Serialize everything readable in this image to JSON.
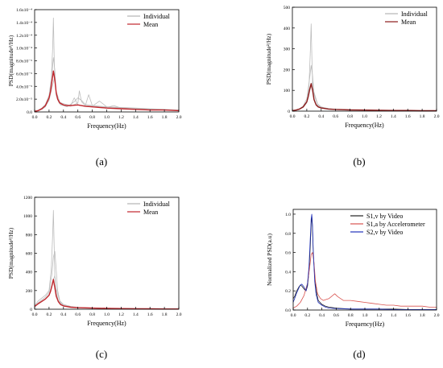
{
  "chart_data": [
    {
      "type": "line",
      "panel_label": "(a)",
      "xlabel": "Frequency(Hz)",
      "ylabel": "PSD(magnitude²/Hz)",
      "xlim": [
        0,
        2.0
      ],
      "ylim": [
        0,
        0.00016
      ],
      "xticks": [
        "0.0",
        "0.2",
        "0.4",
        "0.6",
        "0.8",
        "1.0",
        "1.2",
        "1.4",
        "1.6",
        "1.8",
        "2.0"
      ],
      "yticks": [
        {
          "v": 0,
          "label": "0.0"
        },
        {
          "v": 2e-05,
          "label": "2.0x10⁻⁵"
        },
        {
          "v": 4e-05,
          "label": "4.0x10⁻⁵"
        },
        {
          "v": 6e-05,
          "label": "6.0x10⁻⁵"
        },
        {
          "v": 8e-05,
          "label": "8.0x10⁻⁵"
        },
        {
          "v": 0.0001,
          "label": "1.0x10⁻⁴"
        },
        {
          "v": 0.00012,
          "label": "1.2x10⁻⁴"
        },
        {
          "v": 0.00014,
          "label": "1.4x10⁻⁴"
        },
        {
          "v": 0.00016,
          "label": "1.6x10⁻⁴"
        }
      ],
      "legend": {
        "position": "top-right",
        "entries": [
          {
            "name": "Individual",
            "color": "#b5b5b5"
          },
          {
            "name": "Mean",
            "color": "#c0262c"
          }
        ]
      },
      "series": [
        {
          "name": "Individual",
          "color": "#bdbdbd",
          "x": [
            0,
            0.05,
            0.1,
            0.15,
            0.2,
            0.23,
            0.25,
            0.26,
            0.27,
            0.28,
            0.3,
            0.33,
            0.36,
            0.4,
            0.45,
            0.5,
            0.55,
            0.6,
            0.65,
            0.7,
            0.8,
            0.9,
            1.0,
            1.2,
            1.4,
            1.6,
            1.8,
            2.0
          ],
          "y": [
            1e-06,
            2e-06,
            4e-06,
            8e-06,
            2e-05,
            5e-05,
            0.0001,
            0.000147,
            9e-05,
            5e-05,
            2.6e-05,
            1.6e-05,
            1.1e-05,
            1e-05,
            8e-06,
            1.2e-05,
            1.6e-05,
            2.2e-05,
            1.8e-05,
            1.2e-05,
            1e-05,
            9e-06,
            8e-06,
            7e-06,
            6e-06,
            5e-06,
            4e-06,
            3e-06
          ]
        },
        {
          "name": "Individual",
          "color": "#bdbdbd",
          "x": [
            0,
            0.05,
            0.1,
            0.15,
            0.2,
            0.24,
            0.26,
            0.28,
            0.3,
            0.34,
            0.4,
            0.5,
            0.6,
            0.62,
            0.65,
            0.7,
            0.8,
            0.9,
            1.0,
            1.2,
            1.4,
            1.6,
            1.8,
            2.0
          ],
          "y": [
            1e-06,
            3e-06,
            6e-06,
            1.2e-05,
            2.6e-05,
            6e-05,
            8.5e-05,
            6.5e-05,
            3e-05,
            1.4e-05,
            1e-05,
            9e-06,
            1.4e-05,
            3.3e-05,
            1.6e-05,
            1e-05,
            9e-06,
            1.7e-05,
            8e-06,
            6e-06,
            5e-06,
            4e-06,
            3e-06,
            3e-06
          ]
        },
        {
          "name": "Individual",
          "color": "#bdbdbd",
          "x": [
            0,
            0.05,
            0.1,
            0.15,
            0.2,
            0.25,
            0.28,
            0.3,
            0.35,
            0.4,
            0.5,
            0.55,
            0.6,
            0.7,
            0.75,
            0.8,
            0.9,
            1.0,
            1.1,
            1.2,
            1.4,
            1.6,
            1.8,
            2.0
          ],
          "y": [
            1e-06,
            2e-06,
            4e-06,
            9e-06,
            1.8e-05,
            4.2e-05,
            5.5e-05,
            3.2e-05,
            1.5e-05,
            1.3e-05,
            1e-05,
            2.2e-05,
            1.1e-05,
            9e-06,
            2.7e-05,
            1e-05,
            8e-06,
            7e-06,
            1e-05,
            6e-06,
            5e-06,
            4e-06,
            3e-06,
            2e-06
          ]
        },
        {
          "name": "Mean",
          "color": "#c0262c",
          "x": [
            0,
            0.05,
            0.1,
            0.15,
            0.2,
            0.22,
            0.24,
            0.26,
            0.28,
            0.3,
            0.32,
            0.35,
            0.4,
            0.45,
            0.5,
            0.6,
            0.7,
            0.8,
            0.9,
            1.0,
            1.2,
            1.4,
            1.6,
            1.8,
            2.0
          ],
          "y": [
            1e-06,
            2e-06,
            5e-06,
            1e-05,
            2.2e-05,
            3.2e-05,
            4.8e-05,
            6.4e-05,
            5e-05,
            3e-05,
            2e-05,
            1.4e-05,
            1.1e-05,
            1e-05,
            1e-05,
            1.1e-05,
            9e-06,
            8e-06,
            7e-06,
            6e-06,
            5e-06,
            4e-06,
            3e-06,
            3e-06,
            2e-06
          ]
        }
      ]
    },
    {
      "type": "line",
      "panel_label": "(b)",
      "xlabel": "Frequency(Hz)",
      "ylabel": "PSD(magnitude²/Hz)",
      "xlim": [
        0,
        2.0
      ],
      "ylim": [
        0,
        500
      ],
      "xticks": [
        "0.0",
        "0.2",
        "0.4",
        "0.6",
        "0.8",
        "1.0",
        "1.2",
        "1.4",
        "1.6",
        "1.8",
        "2.0"
      ],
      "yticks": [
        {
          "v": 0,
          "label": "0"
        },
        {
          "v": 100,
          "label": "100"
        },
        {
          "v": 200,
          "label": "200"
        },
        {
          "v": 300,
          "label": "300"
        },
        {
          "v": 400,
          "label": "400"
        },
        {
          "v": 500,
          "label": "500"
        }
      ],
      "legend": {
        "position": "top-right",
        "entries": [
          {
            "name": "Individual",
            "color": "#b5b5b5"
          },
          {
            "name": "Mean",
            "color": "#8b1a1a"
          }
        ]
      },
      "series": [
        {
          "name": "Individual",
          "color": "#bdbdbd",
          "x": [
            0,
            0.05,
            0.1,
            0.15,
            0.2,
            0.23,
            0.25,
            0.26,
            0.27,
            0.28,
            0.3,
            0.33,
            0.36,
            0.4,
            0.5,
            0.6,
            0.7,
            0.8,
            1.0,
            1.2,
            1.4,
            1.6,
            1.8,
            2.0
          ],
          "y": [
            2,
            5,
            10,
            20,
            45,
            120,
            300,
            420,
            260,
            130,
            60,
            30,
            20,
            15,
            10,
            8,
            7,
            6,
            5,
            4,
            3,
            3,
            2,
            2
          ]
        },
        {
          "name": "Individual",
          "color": "#bdbdbd",
          "x": [
            0,
            0.05,
            0.1,
            0.15,
            0.2,
            0.24,
            0.26,
            0.28,
            0.3,
            0.35,
            0.4,
            0.5,
            0.6,
            0.8,
            1.0,
            1.2,
            1.4,
            1.6,
            1.8,
            2.0
          ],
          "y": [
            3,
            6,
            12,
            25,
            60,
            160,
            220,
            170,
            80,
            30,
            18,
            12,
            9,
            7,
            5,
            4,
            3,
            3,
            2,
            2
          ]
        },
        {
          "name": "Individual",
          "color": "#bdbdbd",
          "x": [
            0,
            0.05,
            0.1,
            0.15,
            0.2,
            0.25,
            0.28,
            0.3,
            0.35,
            0.4,
            0.5,
            0.6,
            0.8,
            1.0,
            1.2,
            1.4,
            1.6,
            1.8,
            2.0
          ],
          "y": [
            2,
            4,
            9,
            18,
            40,
            110,
            140,
            90,
            35,
            20,
            12,
            9,
            6,
            5,
            4,
            3,
            3,
            2,
            2
          ]
        },
        {
          "name": "Mean",
          "color": "#8b1a1a",
          "x": [
            0,
            0.05,
            0.1,
            0.15,
            0.2,
            0.22,
            0.24,
            0.26,
            0.28,
            0.3,
            0.33,
            0.36,
            0.4,
            0.5,
            0.6,
            0.8,
            1.0,
            1.2,
            1.4,
            1.6,
            1.8,
            2.0
          ],
          "y": [
            2,
            5,
            10,
            20,
            45,
            70,
            105,
            132,
            100,
            55,
            30,
            20,
            15,
            10,
            8,
            6,
            5,
            4,
            3,
            3,
            2,
            2
          ]
        }
      ]
    },
    {
      "type": "line",
      "panel_label": "(c)",
      "xlabel": "Frequency(Hz)",
      "ylabel": "PSD(magnitude²/Hz)",
      "xlim": [
        0,
        2.0
      ],
      "ylim": [
        0,
        1200
      ],
      "xticks": [
        "0.0",
        "0.2",
        "0.4",
        "0.6",
        "0.8",
        "1.0",
        "1.2",
        "1.4",
        "1.6",
        "1.8",
        "2.0"
      ],
      "yticks": [
        {
          "v": 0,
          "label": "0"
        },
        {
          "v": 200,
          "label": "200"
        },
        {
          "v": 400,
          "label": "400"
        },
        {
          "v": 600,
          "label": "600"
        },
        {
          "v": 800,
          "label": "800"
        },
        {
          "v": 1000,
          "label": "1000"
        },
        {
          "v": 1200,
          "label": "1200"
        }
      ],
      "legend": {
        "position": "top-right",
        "entries": [
          {
            "name": "Individual",
            "color": "#b5b5b5"
          },
          {
            "name": "Mean",
            "color": "#c0262c"
          }
        ]
      },
      "series": [
        {
          "name": "Individual",
          "color": "#bdbdbd",
          "x": [
            0,
            0.05,
            0.1,
            0.15,
            0.2,
            0.23,
            0.25,
            0.26,
            0.27,
            0.28,
            0.3,
            0.33,
            0.36,
            0.4,
            0.5,
            0.6,
            0.8,
            1.0,
            1.2,
            1.4,
            1.6,
            1.8,
            2.0
          ],
          "y": [
            40,
            90,
            120,
            150,
            200,
            420,
            800,
            1060,
            700,
            350,
            180,
            90,
            60,
            40,
            25,
            18,
            12,
            10,
            8,
            6,
            5,
            4,
            3
          ]
        },
        {
          "name": "Individual",
          "color": "#bdbdbd",
          "x": [
            0,
            0.05,
            0.1,
            0.15,
            0.2,
            0.24,
            0.26,
            0.28,
            0.3,
            0.32,
            0.35,
            0.4,
            0.5,
            0.6,
            0.8,
            1.0,
            1.2,
            1.4,
            1.6,
            1.8,
            2.0
          ],
          "y": [
            30,
            70,
            100,
            130,
            180,
            380,
            560,
            620,
            420,
            200,
            90,
            50,
            30,
            20,
            14,
            10,
            8,
            6,
            5,
            4,
            3
          ]
        },
        {
          "name": "Individual",
          "color": "#bdbdbd",
          "x": [
            0,
            0.05,
            0.1,
            0.15,
            0.2,
            0.25,
            0.28,
            0.3,
            0.35,
            0.4,
            0.5,
            0.6,
            0.8,
            1.0,
            1.2,
            1.4,
            1.6,
            1.8,
            2.0
          ],
          "y": [
            20,
            60,
            80,
            110,
            150,
            300,
            360,
            220,
            80,
            40,
            25,
            18,
            12,
            9,
            7,
            5,
            4,
            3,
            3
          ]
        },
        {
          "name": "Mean",
          "color": "#c0262c",
          "x": [
            0,
            0.05,
            0.1,
            0.15,
            0.2,
            0.22,
            0.24,
            0.26,
            0.28,
            0.3,
            0.33,
            0.36,
            0.4,
            0.5,
            0.6,
            0.8,
            1.0,
            1.2,
            1.4,
            1.6,
            1.8,
            2.0
          ],
          "y": [
            30,
            60,
            85,
            110,
            150,
            190,
            250,
            320,
            230,
            140,
            80,
            50,
            35,
            22,
            16,
            12,
            9,
            7,
            5,
            4,
            3,
            3
          ]
        }
      ]
    },
    {
      "type": "line",
      "panel_label": "(d)",
      "xlabel": "Frequency(Hz)",
      "ylabel": "Normalized PSD(a.u)",
      "xlim": [
        0,
        2.0
      ],
      "ylim": [
        0,
        1.05
      ],
      "xticks": [
        "0.0",
        "0.2",
        "0.4",
        "0.6",
        "0.8",
        "1.0",
        "1.2",
        "1.4",
        "1.6",
        "1.8",
        "2.0"
      ],
      "yticks": [
        {
          "v": 0,
          "label": "0.0"
        },
        {
          "v": 0.2,
          "label": "0.2"
        },
        {
          "v": 0.4,
          "label": "0.4"
        },
        {
          "v": 0.6,
          "label": "0.6"
        },
        {
          "v": 0.8,
          "label": "0.8"
        },
        {
          "v": 1.0,
          "label": "1.0"
        }
      ],
      "legend": {
        "position": "top-right",
        "entries": [
          {
            "name": "S1,v by Video",
            "color": "#222222"
          },
          {
            "name": "S1,a by Accelerometer",
            "color": "#d9534f"
          },
          {
            "name": "S2,v by Video",
            "color": "#2233bb"
          }
        ]
      },
      "series": [
        {
          "name": "S1,v by Video",
          "color": "#222222",
          "x": [
            0,
            0.02,
            0.05,
            0.08,
            0.1,
            0.12,
            0.15,
            0.18,
            0.2,
            0.22,
            0.24,
            0.25,
            0.26,
            0.27,
            0.28,
            0.3,
            0.32,
            0.35,
            0.4,
            0.45,
            0.5,
            0.6,
            0.8,
            1.0,
            1.2,
            1.4,
            1.6,
            1.8,
            2.0
          ],
          "y": [
            0.12,
            0.14,
            0.2,
            0.24,
            0.26,
            0.25,
            0.22,
            0.2,
            0.25,
            0.4,
            0.7,
            0.9,
            0.98,
            0.85,
            0.6,
            0.35,
            0.2,
            0.1,
            0.06,
            0.04,
            0.03,
            0.02,
            0.01,
            0.01,
            0.01,
            0.01,
            0.005,
            0.005,
            0.005
          ]
        },
        {
          "name": "S1,a by Accelerometer",
          "color": "#d9534f",
          "x": [
            0,
            0.05,
            0.1,
            0.15,
            0.2,
            0.23,
            0.25,
            0.27,
            0.29,
            0.31,
            0.34,
            0.38,
            0.42,
            0.46,
            0.5,
            0.55,
            0.58,
            0.62,
            0.66,
            0.7,
            0.8,
            0.9,
            1.0,
            1.1,
            1.2,
            1.3,
            1.4,
            1.5,
            1.6,
            1.7,
            1.8,
            1.9,
            2.0
          ],
          "y": [
            0.02,
            0.04,
            0.08,
            0.15,
            0.28,
            0.45,
            0.58,
            0.6,
            0.5,
            0.3,
            0.17,
            0.12,
            0.1,
            0.11,
            0.12,
            0.15,
            0.17,
            0.14,
            0.12,
            0.1,
            0.1,
            0.09,
            0.08,
            0.07,
            0.06,
            0.05,
            0.05,
            0.04,
            0.04,
            0.04,
            0.04,
            0.03,
            0.03
          ]
        },
        {
          "name": "S2,v by Video",
          "color": "#2233bb",
          "x": [
            0,
            0.02,
            0.05,
            0.08,
            0.1,
            0.12,
            0.15,
            0.18,
            0.2,
            0.22,
            0.24,
            0.25,
            0.26,
            0.27,
            0.28,
            0.3,
            0.32,
            0.35,
            0.4,
            0.45,
            0.5,
            0.6,
            0.8,
            1.0,
            1.2,
            1.4,
            1.6,
            1.8,
            2.0
          ],
          "y": [
            0.08,
            0.12,
            0.18,
            0.23,
            0.26,
            0.27,
            0.24,
            0.2,
            0.28,
            0.45,
            0.78,
            0.95,
            1.0,
            0.88,
            0.62,
            0.3,
            0.16,
            0.08,
            0.05,
            0.03,
            0.02,
            0.015,
            0.01,
            0.01,
            0.01,
            0.005,
            0.005,
            0.005,
            0.005
          ]
        }
      ]
    }
  ]
}
